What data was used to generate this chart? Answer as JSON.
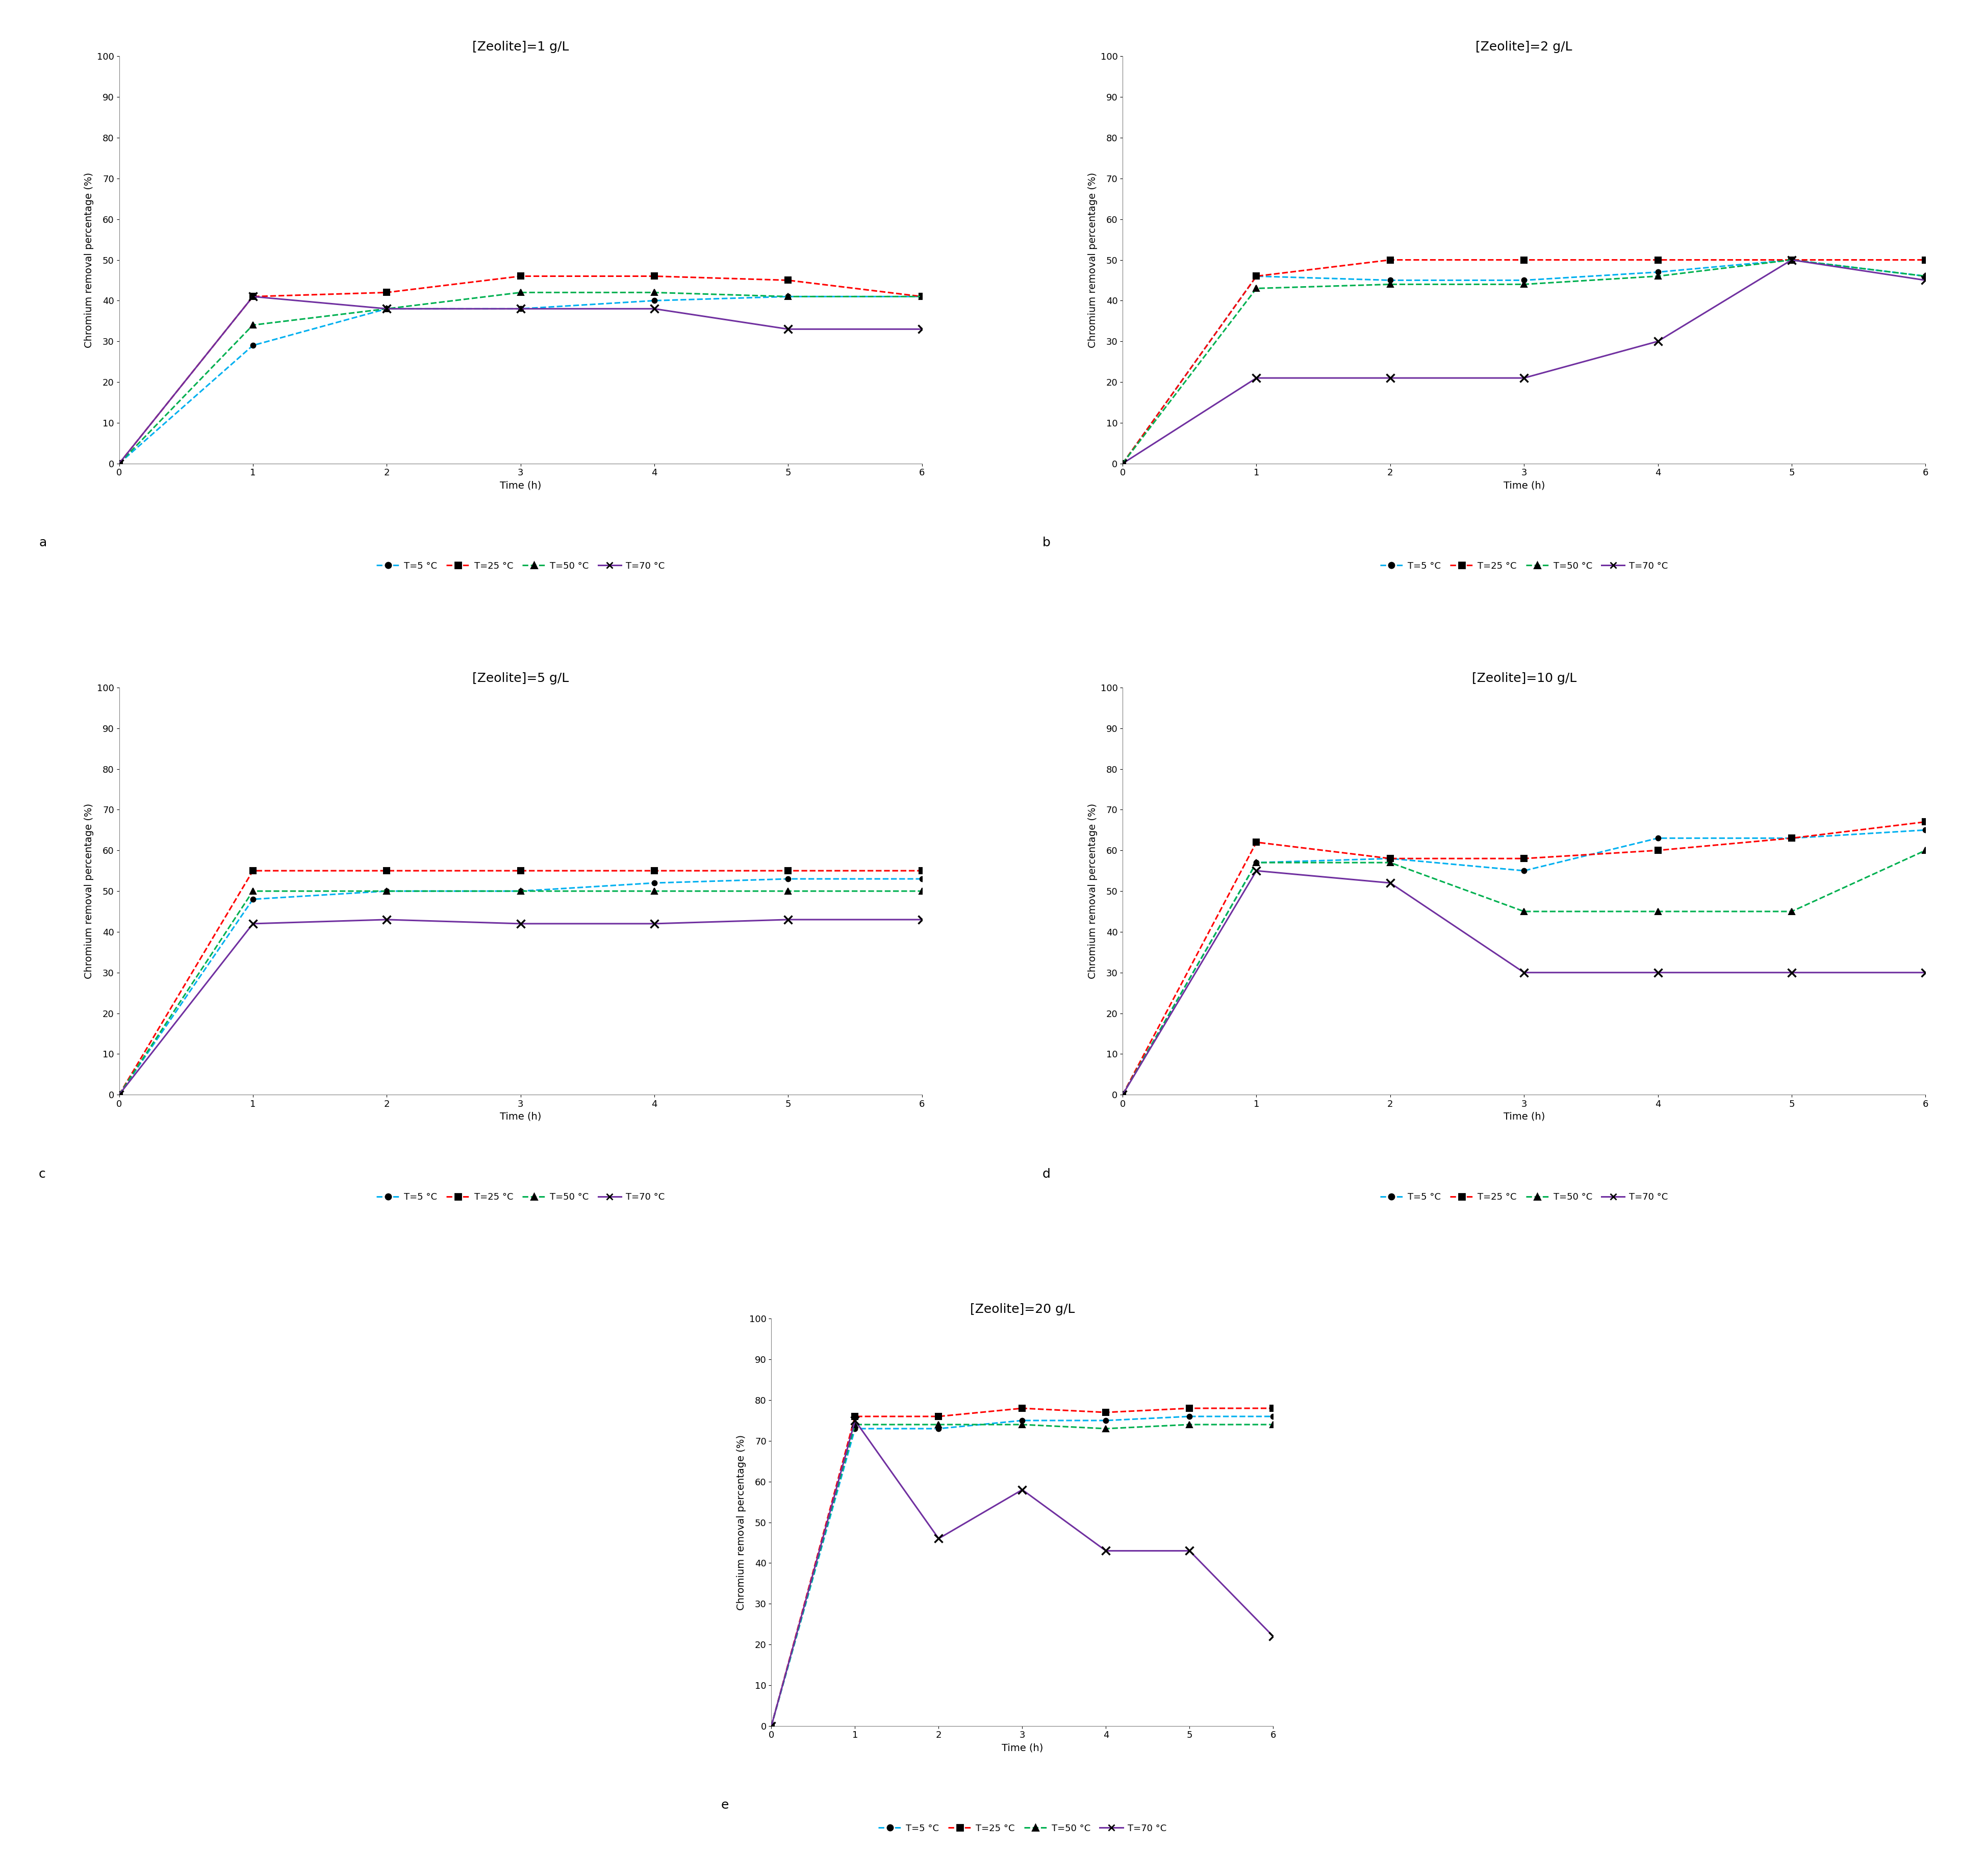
{
  "time": [
    0,
    1,
    2,
    3,
    4,
    5,
    6
  ],
  "panels": [
    {
      "title": "[Zeolite]=1 g/L",
      "label": "a",
      "T5": [
        0,
        29,
        38,
        38,
        40,
        41,
        41
      ],
      "T25": [
        0,
        41,
        42,
        46,
        46,
        45,
        41
      ],
      "T50": [
        0,
        34,
        38,
        42,
        42,
        41,
        41
      ],
      "T70": [
        0,
        41,
        38,
        38,
        38,
        33,
        33
      ]
    },
    {
      "title": "[Zeolite]=2 g/L",
      "label": "b",
      "T5": [
        0,
        46,
        45,
        45,
        47,
        50,
        46
      ],
      "T25": [
        0,
        46,
        50,
        50,
        50,
        50,
        50
      ],
      "T50": [
        0,
        43,
        44,
        44,
        46,
        50,
        46
      ],
      "T70": [
        0,
        21,
        21,
        21,
        30,
        50,
        45
      ]
    },
    {
      "title": "[Zeolite]=5 g/L",
      "label": "c",
      "T5": [
        0,
        48,
        50,
        50,
        52,
        53,
        53
      ],
      "T25": [
        0,
        55,
        55,
        55,
        55,
        55,
        55
      ],
      "T50": [
        0,
        50,
        50,
        50,
        50,
        50,
        50
      ],
      "T70": [
        0,
        42,
        43,
        42,
        42,
        43,
        43
      ]
    },
    {
      "title": "[Zeolite]=10 g/L",
      "label": "d",
      "T5": [
        0,
        57,
        58,
        55,
        63,
        63,
        65
      ],
      "T25": [
        0,
        62,
        58,
        58,
        60,
        63,
        67
      ],
      "T50": [
        0,
        57,
        57,
        45,
        45,
        45,
        60
      ],
      "T70": [
        0,
        55,
        52,
        30,
        30,
        30,
        30
      ]
    },
    {
      "title": "[Zeolite]=20 g/L",
      "label": "e",
      "T5": [
        0,
        73,
        73,
        75,
        75,
        76,
        76
      ],
      "T25": [
        0,
        76,
        76,
        78,
        77,
        78,
        78
      ],
      "T50": [
        0,
        74,
        74,
        74,
        73,
        74,
        74
      ],
      "T70": [
        0,
        75,
        46,
        58,
        43,
        43,
        22
      ]
    }
  ],
  "colors": {
    "T5": "#00B0F0",
    "T25": "#FF0000",
    "T50": "#00B050",
    "T70": "#7030A0"
  },
  "legend_labels": {
    "T5": "T=5 °C",
    "T25": "T=25 °C",
    "T50": "T=50 °C",
    "T70": "T=70 °C"
  },
  "xlabel": "Time (h)",
  "ylabel": "Chromium removal percentage (%)",
  "ylim": [
    0,
    100
  ],
  "xlim": [
    0,
    6
  ],
  "yticks": [
    0,
    10,
    20,
    30,
    40,
    50,
    60,
    70,
    80,
    90,
    100
  ],
  "xticks": [
    0,
    1,
    2,
    3,
    4,
    5,
    6
  ],
  "title_fontsize": 18,
  "label_fontsize": 14,
  "tick_fontsize": 13,
  "legend_fontsize": 13
}
